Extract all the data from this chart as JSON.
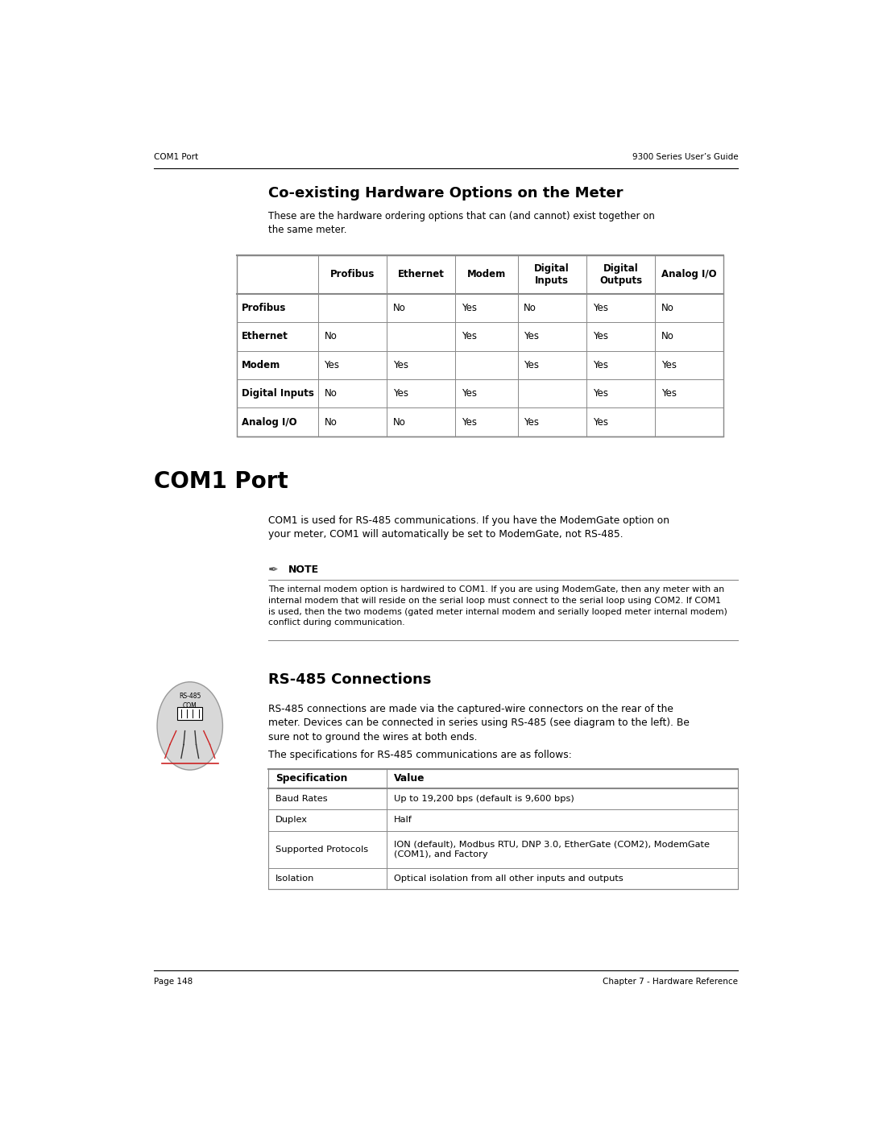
{
  "page_width": 10.8,
  "page_height": 13.97,
  "bg_color": "#ffffff",
  "header_left": "COM1 Port",
  "header_right": "9300 Series User’s Guide",
  "footer_left": "Page 148",
  "footer_right": "Chapter 7 - Hardware Reference",
  "section1_title": "Co-existing Hardware Options on the Meter",
  "section1_intro": "These are the hardware ordering options that can (and cannot) exist together on\nthe same meter.",
  "table1_col_headers": [
    "Profibus",
    "Ethernet",
    "Modem",
    "Digital\nInputs",
    "Digital\nOutputs",
    "Analog I/O"
  ],
  "table1_row_headers": [
    "Profibus",
    "Ethernet",
    "Modem",
    "Digital Inputs",
    "Analog I/O"
  ],
  "table1_data": [
    [
      "",
      "No",
      "Yes",
      "No",
      "Yes",
      "No"
    ],
    [
      "No",
      "",
      "Yes",
      "Yes",
      "Yes",
      "No"
    ],
    [
      "Yes",
      "Yes",
      "",
      "Yes",
      "Yes",
      "Yes"
    ],
    [
      "No",
      "Yes",
      "Yes",
      "",
      "Yes",
      "Yes"
    ],
    [
      "No",
      "No",
      "Yes",
      "Yes",
      "Yes",
      ""
    ]
  ],
  "section2_title": "COM1 Port",
  "section2_body": "COM1 is used for RS-485 communications. If you have the ModemGate option on\nyour meter, COM1 will automatically be set to ModemGate, not RS-485.",
  "note_title": "NOTE",
  "note_body": "The internal modem option is hardwired to COM1. If you are using ModemGate, then any meter with an\ninternal modem that will reside on the serial loop must connect to the serial loop using COM2. If COM1\nis used, then the two modems (gated meter internal modem and serially looped meter internal modem)\nconflict during communication.",
  "section3_title": "RS-485 Connections",
  "section3_body1": "RS-485 connections are made via the captured-wire connectors on the rear of the\nmeter. Devices can be connected in series using RS-485 (see diagram to the left). Be\nsure not to ground the wires at both ends.",
  "section3_body2": "The specifications for RS-485 communications are as follows:",
  "table2_col_headers": [
    "Specification",
    "Value"
  ],
  "table2_data": [
    [
      "Baud Rates",
      "Up to 19,200 bps (default is 9,600 bps)"
    ],
    [
      "Duplex",
      "Half"
    ],
    [
      "Supported Protocols",
      "ION (default), Modbus RTU, DNP 3.0, EtherGate (COM2), ModemGate\n(COM1), and Factory"
    ],
    [
      "Isolation",
      "Optical isolation from all other inputs and outputs"
    ]
  ]
}
